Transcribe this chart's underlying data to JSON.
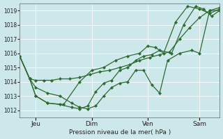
{
  "title": "",
  "xlabel": "Pression niveau de la mer( hPa )",
  "background_color": "#cce8ea",
  "grid_color": "#ffffff",
  "line_color": "#2d6a2d",
  "ylim": [
    1011.5,
    1019.5
  ],
  "xlim": [
    0,
    1
  ],
  "xtick_labels": [
    "Jeu",
    "Dim",
    "Ven",
    "Sam"
  ],
  "xtick_positions": [
    0.08,
    0.36,
    0.64,
    0.9
  ],
  "series1": {
    "x": [
      0.0,
      0.05,
      0.08,
      0.12,
      0.16,
      0.2,
      0.25,
      0.3,
      0.35,
      0.4,
      0.45,
      0.5,
      0.55,
      0.6,
      0.65,
      0.7,
      0.75,
      0.8,
      0.85,
      0.9,
      0.95,
      1.0
    ],
    "y": [
      1015.8,
      1014.2,
      1014.1,
      1014.1,
      1014.1,
      1014.2,
      1014.2,
      1014.3,
      1014.5,
      1014.7,
      1014.8,
      1015.0,
      1015.2,
      1015.5,
      1015.7,
      1015.9,
      1016.1,
      1017.0,
      1017.8,
      1018.5,
      1019.0,
      1019.0
    ]
  },
  "series2": {
    "x": [
      0.0,
      0.05,
      0.08,
      0.14,
      0.2,
      0.26,
      0.3,
      0.34,
      0.38,
      0.42,
      0.46,
      0.5,
      0.54,
      0.58,
      0.62,
      0.66,
      0.7,
      0.74,
      0.8,
      0.86,
      0.9,
      0.95,
      1.0
    ],
    "y": [
      1015.8,
      1014.2,
      1013.6,
      1013.2,
      1013.0,
      1012.5,
      1012.2,
      1012.1,
      1012.3,
      1013.0,
      1013.6,
      1013.9,
      1014.0,
      1014.8,
      1014.8,
      1013.8,
      1013.2,
      1015.5,
      1016.0,
      1016.2,
      1016.0,
      1019.0,
      1019.2
    ]
  },
  "series3": {
    "x": [
      0.0,
      0.05,
      0.08,
      0.14,
      0.2,
      0.26,
      0.3,
      0.34,
      0.38,
      0.42,
      0.46,
      0.5,
      0.54,
      0.58,
      0.62,
      0.66,
      0.7,
      0.76,
      0.82,
      0.88,
      0.92,
      0.96,
      1.0
    ],
    "y": [
      1015.8,
      1014.2,
      1013.0,
      1012.5,
      1012.4,
      1012.2,
      1012.1,
      1012.3,
      1013.3,
      1013.9,
      1014.1,
      1014.8,
      1015.0,
      1015.5,
      1015.8,
      1015.9,
      1016.2,
      1016.0,
      1018.0,
      1019.3,
      1019.1,
      1018.6,
      1019.0
    ]
  },
  "series4": {
    "x": [
      0.0,
      0.05,
      0.08,
      0.14,
      0.22,
      0.3,
      0.36,
      0.42,
      0.48,
      0.54,
      0.6,
      0.64,
      0.68,
      0.72,
      0.78,
      0.84,
      0.9,
      0.95,
      1.0
    ],
    "y": [
      1015.8,
      1014.2,
      1013.0,
      1012.5,
      1012.4,
      1014.0,
      1014.8,
      1015.0,
      1015.5,
      1015.8,
      1016.0,
      1016.5,
      1016.4,
      1016.0,
      1018.2,
      1019.3,
      1019.1,
      1018.8,
      1019.1
    ]
  },
  "ytick_values": [
    1012,
    1013,
    1014,
    1015,
    1016,
    1017,
    1018,
    1019
  ],
  "figure_bg": "#cce8ea"
}
